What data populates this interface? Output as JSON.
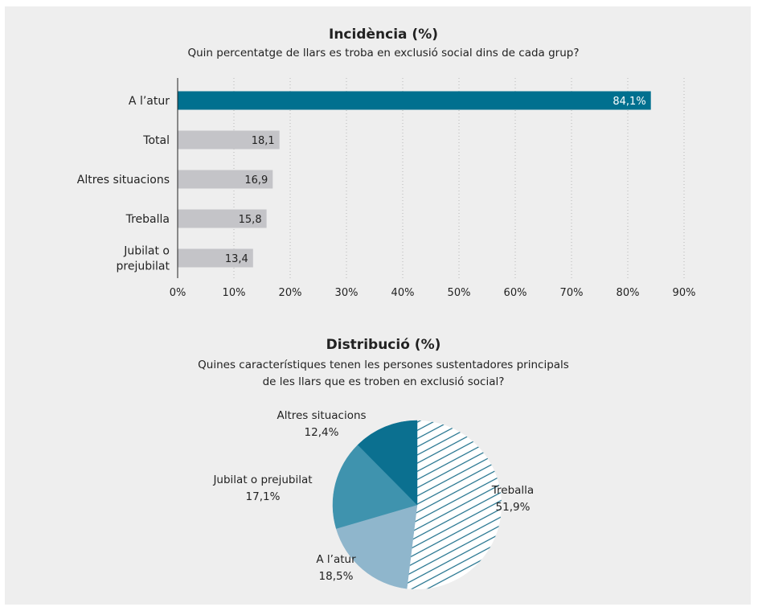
{
  "chart_data": [
    {
      "type": "bar",
      "orientation": "horizontal",
      "title": "Incidència (%)",
      "subtitle": "Quin percentatge de llars es troba en exclusió social dins de cada grup?",
      "categories": [
        "A l’atur",
        "Total",
        "Altres situacions",
        "Treballa",
        "Jubilat o prejubilat"
      ],
      "category_lines": [
        [
          "A l’atur"
        ],
        [
          "Total"
        ],
        [
          "Altres situacions"
        ],
        [
          "Treballa"
        ],
        [
          "Jubilat o",
          "prejubilat"
        ]
      ],
      "values": [
        84.1,
        18.1,
        16.9,
        15.8,
        13.4
      ],
      "value_labels": [
        "84,1%",
        "18,1",
        "16,9",
        "15,8",
        "13,4"
      ],
      "xlim": [
        0,
        90
      ],
      "xticks": [
        "0%",
        "10%",
        "20%",
        "30%",
        "40%",
        "50%",
        "60%",
        "70%",
        "80%",
        "90%"
      ],
      "grid": "vertical dotted",
      "colors": {
        "highlight": "#00708f",
        "default": "#c4c4c8"
      }
    },
    {
      "type": "pie",
      "title": "Distribució (%)",
      "subtitle_lines": [
        "Quines característiques tenen les persones sustentadores principals",
        "de les llars que es troben en exclusió social?"
      ],
      "slices": [
        {
          "label": "Treballa",
          "value": 51.9,
          "value_label": "51,9%",
          "color": "#1a6e8a",
          "fill": "hatched"
        },
        {
          "label": "A l’atur",
          "value": 18.5,
          "value_label": "18,5%",
          "color": "#8fb6cc",
          "fill": "solid"
        },
        {
          "label": "Jubilat o prejubilat",
          "value": 17.1,
          "value_label": "17,1%",
          "color": "#3f93ae",
          "fill": "solid"
        },
        {
          "label": "Altres situacions",
          "value": 12.4,
          "value_label": "12,4%",
          "color": "#0b7090",
          "fill": "solid"
        }
      ]
    }
  ]
}
